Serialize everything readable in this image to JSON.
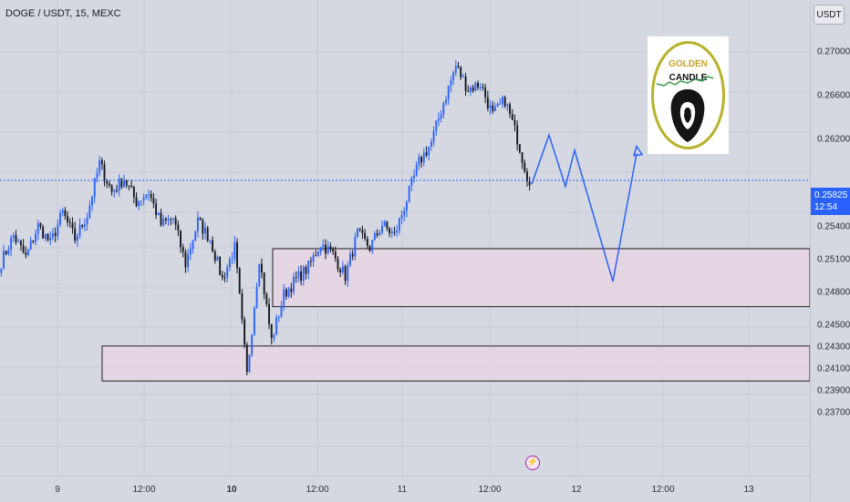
{
  "header": {
    "symbol_title": "DOGE / USDT, 15, MEXC",
    "currency": "USDT"
  },
  "price_axis": {
    "ticks": [
      "0.27000",
      "0.26600",
      "0.26200",
      "0.25400",
      "0.25100",
      "0.24800",
      "0.24500",
      "0.24300",
      "0.24100",
      "0.23900",
      "0.23700"
    ],
    "current_price": "0.25825",
    "countdown": "12:54"
  },
  "time_axis": {
    "ticks": [
      {
        "label": "9",
        "bold": false
      },
      {
        "label": "12:00",
        "bold": false
      },
      {
        "label": "10",
        "bold": true
      },
      {
        "label": "12:00",
        "bold": false
      },
      {
        "label": "11",
        "bold": false
      },
      {
        "label": "12:00",
        "bold": false
      },
      {
        "label": "12",
        "bold": false
      },
      {
        "label": "12:00",
        "bold": false
      },
      {
        "label": "13",
        "bold": false
      }
    ]
  },
  "logo": {
    "line1": "GOLDEN",
    "line2": "CANDLE"
  },
  "colors": {
    "up_candle": "#2962ff",
    "down_candle": "#131722",
    "projection": "#2962ff",
    "zone_fill": "#e8d6e4",
    "price_line": "#2962ff",
    "logo_gold": "#c9a227",
    "logo_ring": "#b8b12a"
  },
  "event_marker": {
    "icon": "lightning-icon",
    "glyph": "⚡"
  },
  "chart_data": {
    "type": "candlestick",
    "title": "DOGE / USDT, 15, MEXC",
    "current_price": 0.25825,
    "y_ticks": [
      0.27,
      0.266,
      0.262,
      0.254,
      0.251,
      0.248,
      0.245,
      0.243,
      0.241,
      0.239,
      0.237
    ],
    "x_ticks": [
      "9",
      "12:00",
      "10",
      "12:00",
      "11",
      "12:00",
      "12",
      "12:00",
      "13"
    ],
    "price_path": [
      0.2508,
      0.2532,
      0.2512,
      0.2541,
      0.2525,
      0.2553,
      0.2529,
      0.2551,
      0.2598,
      0.2572,
      0.2584,
      0.2563,
      0.2572,
      0.2542,
      0.2548,
      0.2506,
      0.2545,
      0.2529,
      0.2492,
      0.2521,
      0.2404,
      0.2512,
      0.2436,
      0.2478,
      0.2492,
      0.2503,
      0.2525,
      0.2515,
      0.2495,
      0.2534,
      0.2521,
      0.2542,
      0.2532,
      0.2565,
      0.2599,
      0.2617,
      0.2654,
      0.2687,
      0.2666,
      0.2671,
      0.2642,
      0.2656,
      0.2621,
      0.2578
    ],
    "zones": [
      {
        "name": "upper-demand-zone",
        "high": 0.252,
        "low": 0.2467
      },
      {
        "name": "lower-demand-zone",
        "high": 0.2431,
        "low": 0.2399
      }
    ],
    "projection": [
      0.2579,
      0.2624,
      0.2577,
      0.261,
      0.249,
      0.2607
    ]
  }
}
